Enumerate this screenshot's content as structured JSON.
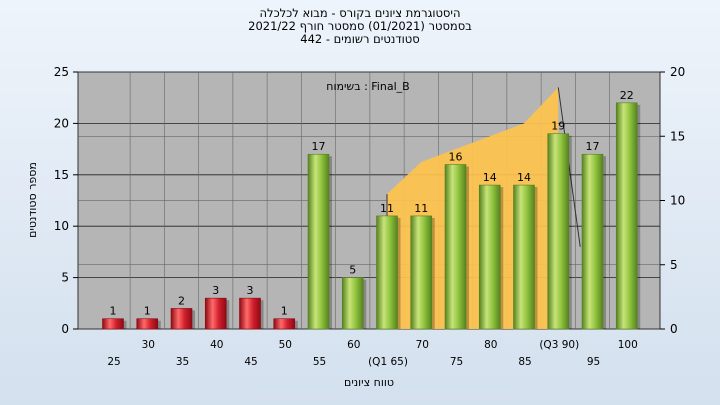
{
  "chart_data": {
    "type": "bar",
    "title_lines": [
      "היסטוגרמת ציונים בקורס - מבוא לכלכלה",
      "בסמסטר  (01/2021)  סמסטר חורף 2021/22",
      "סטודנטים רשומים - 442"
    ],
    "annotation": "בשימוח : Final_B",
    "ylabel": "מספר סטודנטים",
    "xlabel": "טווח ציונים",
    "ylim": [
      0,
      25
    ],
    "y_ticks": [
      "0",
      "5",
      "10",
      "15",
      "20",
      "25"
    ],
    "y2lim": [
      0,
      20
    ],
    "y2_ticks": [
      "0",
      "5",
      "10",
      "15",
      "20"
    ],
    "grid": true,
    "categories": [
      "25",
      "30",
      "35",
      "40",
      "45",
      "50",
      "55",
      "60",
      "65",
      "70",
      "75",
      "80",
      "85",
      "90",
      "95",
      "100"
    ],
    "category_labels": [
      "25",
      "30",
      "35",
      "40",
      "45",
      "50",
      "55",
      "60",
      "(Q1 65)",
      "70",
      "75",
      "80",
      "85",
      "(Q3 90)",
      "95",
      "100"
    ],
    "values": [
      1,
      1,
      2,
      3,
      3,
      1,
      17,
      5,
      11,
      11,
      16,
      14,
      14,
      19,
      17,
      22
    ],
    "data_labels": [
      "1",
      "1",
      "2",
      "3",
      "3",
      "1",
      "17",
      "5",
      "11",
      "11",
      "16",
      "14",
      "14",
      "19",
      "17",
      "22"
    ],
    "bar_colors": [
      "red",
      "red",
      "red",
      "red",
      "red",
      "red",
      "green",
      "green",
      "green",
      "green",
      "green",
      "green",
      "green",
      "green",
      "green",
      "green"
    ],
    "iqr_area": {
      "x_start": "65",
      "x_end": "90",
      "y2_values": [
        10.5,
        13,
        14,
        15,
        16,
        18.8
      ]
    },
    "colors": {
      "plot_bg": "#b5b5b5",
      "area_fill": "#ffc34d",
      "bar_red_light": "#ff6a6a",
      "bar_red": "#d0202c",
      "bar_red_dark": "#8d0a14",
      "bar_green_light": "#c8e47a",
      "bar_green": "#8fc23c",
      "bar_green_dark": "#55821f"
    }
  }
}
